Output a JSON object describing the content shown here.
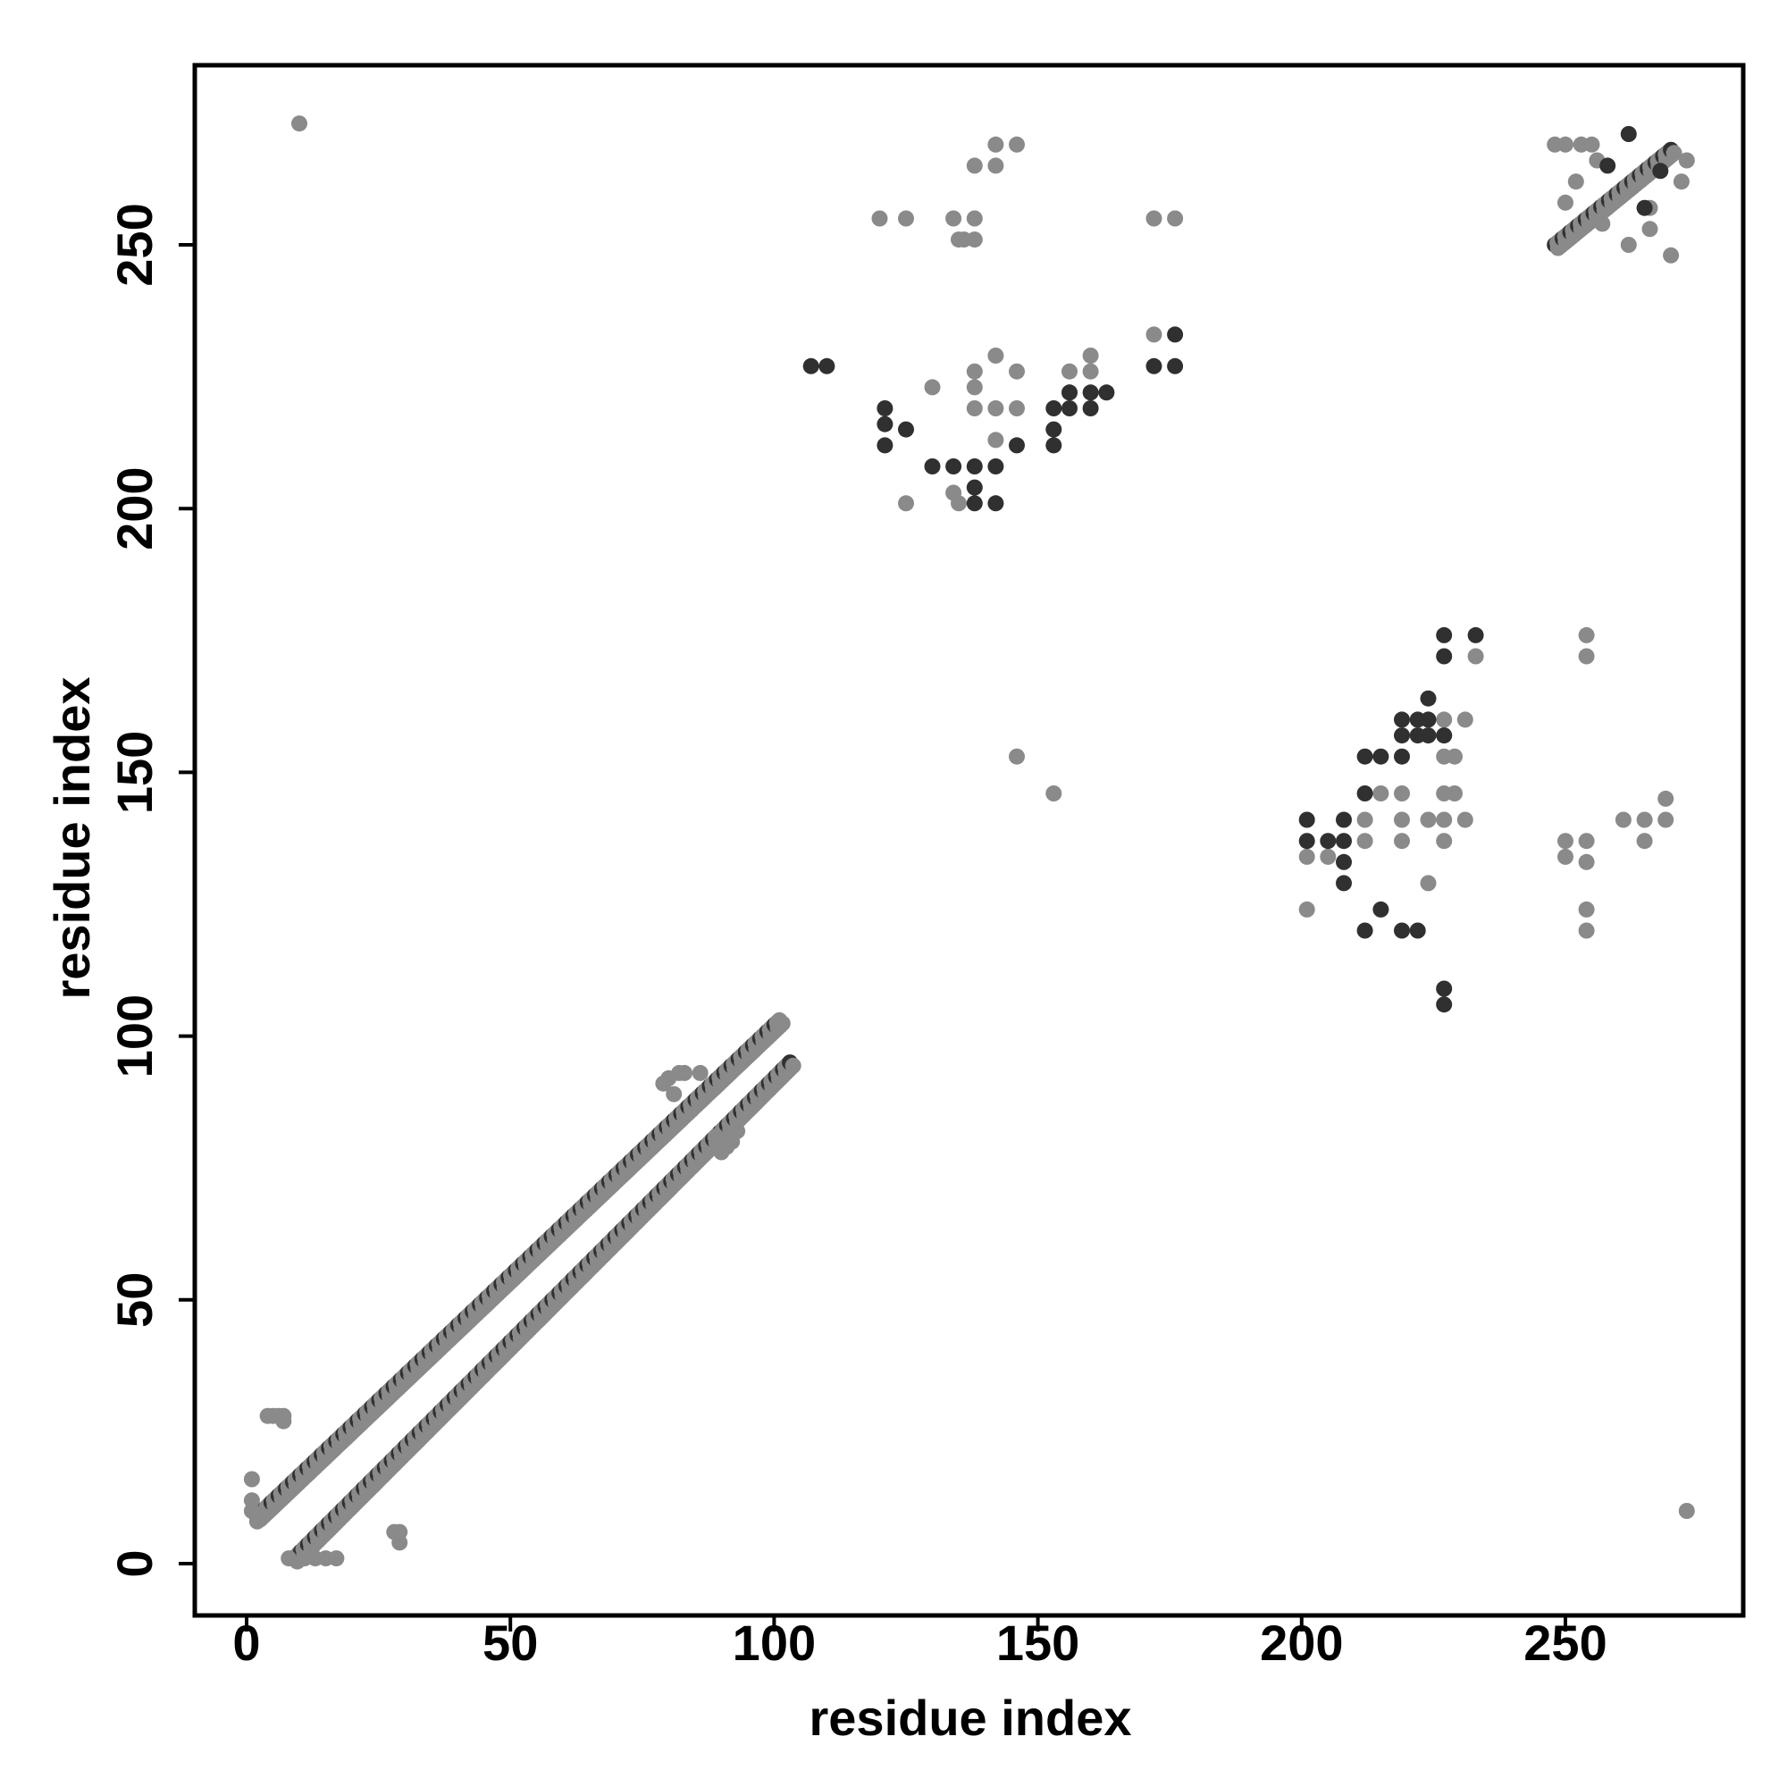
{
  "chart_data": {
    "type": "scatter",
    "title": "",
    "xlabel": "residue index",
    "ylabel": "residue index",
    "xlim": [
      -10,
      285
    ],
    "ylim": [
      -10,
      285
    ],
    "xticks": [
      0,
      50,
      100,
      150,
      200,
      250
    ],
    "yticks": [
      0,
      50,
      100,
      150,
      200,
      250
    ],
    "grid": false,
    "colors": {
      "dark": "#303030",
      "light": "#8a8a8a"
    },
    "diagonal_bands": [
      {
        "from": [
          2,
          9
        ],
        "to": [
          101,
          103
        ],
        "color": "dark",
        "note": "upper band of contacts near diagonal (i, i+7)"
      },
      {
        "from": [
          9,
          1
        ],
        "to": [
          103,
          95
        ],
        "color": "dark",
        "note": "lower band of contacts near diagonal (i+7, i)"
      },
      {
        "from": [
          248,
          250
        ],
        "to": [
          270,
          268
        ],
        "color": "dark",
        "note": "upper-right block"
      }
    ],
    "series": [
      {
        "color": "light",
        "points": [
          [
            10,
            273
          ],
          [
            1,
            16
          ],
          [
            1,
            12
          ],
          [
            1,
            10
          ],
          [
            2,
            8
          ],
          [
            4,
            28
          ],
          [
            5,
            28
          ],
          [
            6,
            28
          ],
          [
            7,
            28
          ],
          [
            7,
            27
          ],
          [
            28,
            6
          ],
          [
            29,
            6
          ],
          [
            29,
            4
          ],
          [
            11,
            1
          ],
          [
            13,
            1
          ],
          [
            15,
            1
          ],
          [
            17,
            1
          ],
          [
            8,
            1
          ],
          [
            79,
            91
          ],
          [
            80,
            92
          ],
          [
            81,
            89
          ],
          [
            82,
            93
          ],
          [
            83,
            93
          ],
          [
            86,
            93
          ],
          [
            90,
            78
          ],
          [
            91,
            79
          ],
          [
            92,
            80
          ],
          [
            93,
            82
          ],
          [
            89,
            81
          ],
          [
            120,
            255
          ],
          [
            125,
            255
          ],
          [
            134,
            255
          ],
          [
            135,
            251
          ],
          [
            138,
            251
          ],
          [
            138,
            255
          ],
          [
            136,
            251
          ],
          [
            142,
            265
          ],
          [
            142,
            269
          ],
          [
            146,
            269
          ],
          [
            138,
            265
          ],
          [
            172,
            255
          ],
          [
            176,
            255
          ],
          [
            172,
            233
          ],
          [
            130,
            223
          ],
          [
            138,
            219
          ],
          [
            142,
            219
          ],
          [
            142,
            213
          ],
          [
            146,
            219
          ],
          [
            138,
            226
          ],
          [
            142,
            229
          ],
          [
            146,
            226
          ],
          [
            138,
            223
          ],
          [
            156,
            226
          ],
          [
            156,
            222
          ],
          [
            160,
            229
          ],
          [
            160,
            226
          ],
          [
            125,
            201
          ],
          [
            134,
            203
          ],
          [
            135,
            201
          ],
          [
            146,
            153
          ],
          [
            153,
            146
          ],
          [
            201,
            124
          ],
          [
            201,
            134
          ],
          [
            205,
            134
          ],
          [
            212,
            141
          ],
          [
            212,
            137
          ],
          [
            215,
            146
          ],
          [
            219,
            146
          ],
          [
            219,
            141
          ],
          [
            219,
            137
          ],
          [
            224,
            129
          ],
          [
            224,
            141
          ],
          [
            227,
            153
          ],
          [
            227,
            157
          ],
          [
            227,
            160
          ],
          [
            229,
            153
          ],
          [
            231,
            160
          ],
          [
            227,
            146
          ],
          [
            227,
            141
          ],
          [
            227,
            137
          ],
          [
            229,
            146
          ],
          [
            231,
            141
          ],
          [
            233,
            172
          ],
          [
            254,
            176
          ],
          [
            254,
            172
          ],
          [
            250,
            137
          ],
          [
            250,
            134
          ],
          [
            254,
            137
          ],
          [
            254,
            133
          ],
          [
            254,
            124
          ],
          [
            254,
            120
          ],
          [
            261,
            141
          ],
          [
            265,
            141
          ],
          [
            269,
            141
          ],
          [
            269,
            145
          ],
          [
            265,
            137
          ],
          [
            273,
            10
          ],
          [
            248,
            269
          ],
          [
            250,
            269
          ],
          [
            253,
            269
          ],
          [
            255,
            269
          ],
          [
            256,
            266
          ],
          [
            252,
            262
          ],
          [
            250,
            258
          ],
          [
            257,
            254
          ],
          [
            262,
            250
          ],
          [
            266,
            253
          ],
          [
            270,
            248
          ],
          [
            266,
            257
          ],
          [
            272,
            262
          ],
          [
            273,
            266
          ]
        ]
      },
      {
        "color": "dark",
        "points": [
          [
            107,
            227
          ],
          [
            110,
            227
          ],
          [
            121,
            219
          ],
          [
            121,
            216
          ],
          [
            121,
            212
          ],
          [
            125,
            215
          ],
          [
            130,
            208
          ],
          [
            134,
            208
          ],
          [
            138,
            208
          ],
          [
            138,
            204
          ],
          [
            138,
            201
          ],
          [
            142,
            208
          ],
          [
            142,
            201
          ],
          [
            146,
            212
          ],
          [
            153,
            219
          ],
          [
            153,
            215
          ],
          [
            153,
            212
          ],
          [
            156,
            219
          ],
          [
            160,
            219
          ],
          [
            160,
            222
          ],
          [
            156,
            222
          ],
          [
            163,
            222
          ],
          [
            172,
            227
          ],
          [
            176,
            227
          ],
          [
            176,
            233
          ],
          [
            201,
            141
          ],
          [
            201,
            137
          ],
          [
            205,
            137
          ],
          [
            208,
            141
          ],
          [
            208,
            137
          ],
          [
            208,
            133
          ],
          [
            208,
            129
          ],
          [
            212,
            120
          ],
          [
            212,
            153
          ],
          [
            212,
            146
          ],
          [
            215,
            153
          ],
          [
            215,
            124
          ],
          [
            219,
            120
          ],
          [
            222,
            120
          ],
          [
            219,
            157
          ],
          [
            219,
            153
          ],
          [
            219,
            160
          ],
          [
            222,
            160
          ],
          [
            222,
            157
          ],
          [
            224,
            164
          ],
          [
            224,
            157
          ],
          [
            224,
            160
          ],
          [
            227,
            157
          ],
          [
            227,
            176
          ],
          [
            227,
            172
          ],
          [
            233,
            176
          ],
          [
            227,
            109
          ],
          [
            227,
            106
          ],
          [
            258,
            265
          ],
          [
            262,
            271
          ],
          [
            265,
            257
          ],
          [
            268,
            264
          ]
        ]
      }
    ]
  }
}
